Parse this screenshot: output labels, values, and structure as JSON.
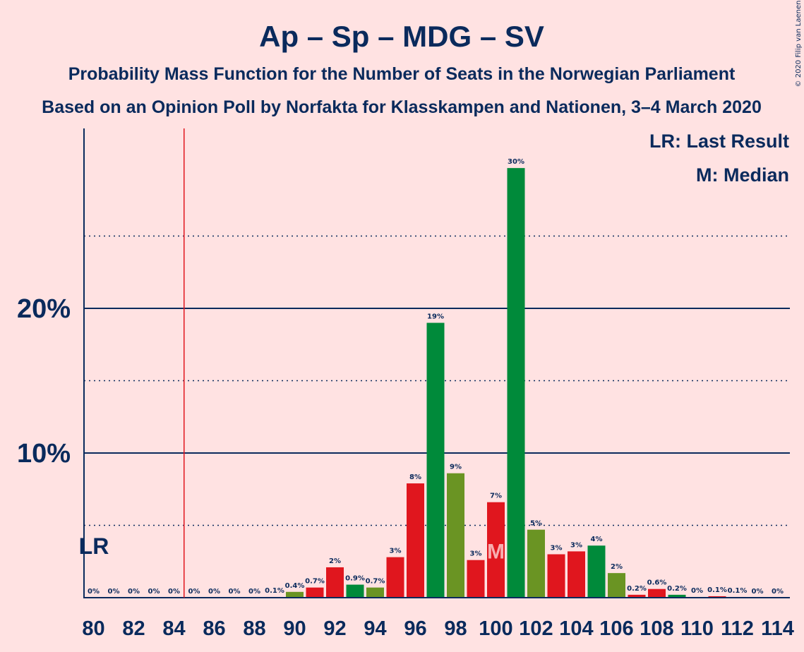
{
  "title": "Ap – Sp – MDG – SV",
  "subtitle1": "Probability Mass Function for the Number of Seats in the Norwegian Parliament",
  "subtitle2": "Based on an Opinion Poll by Norfakta for Klasskampen and Nationen, 3–4 March 2020",
  "copyright": "© 2020 Filip van Laenen",
  "legend": {
    "lr": "LR: Last Result",
    "m": "M: Median"
  },
  "markers": {
    "lr_label": "LR",
    "median_label": "M"
  },
  "colors": {
    "background": "#FFE2E2",
    "text": "#0A2A5C",
    "red": "#E0161E",
    "green": "#008A3A",
    "olive": "#6A9423",
    "lr_line": "#E0161E"
  },
  "chart_data": {
    "type": "bar",
    "x": [
      80,
      81,
      82,
      83,
      84,
      85,
      86,
      87,
      88,
      89,
      90,
      91,
      92,
      93,
      94,
      95,
      96,
      97,
      98,
      99,
      100,
      101,
      102,
      103,
      104,
      105,
      106,
      107,
      108,
      109,
      110,
      111,
      112,
      113,
      114
    ],
    "values": [
      0,
      0,
      0,
      0,
      0,
      0,
      0,
      0,
      0,
      0.05,
      0.4,
      0.7,
      2.1,
      0.9,
      0.7,
      2.8,
      7.9,
      19.0,
      8.6,
      2.6,
      6.6,
      29.7,
      4.7,
      3.0,
      3.2,
      3.6,
      1.7,
      0.2,
      0.6,
      0.2,
      0.05,
      0.1,
      0.05,
      0,
      0
    ],
    "labels": [
      "0%",
      "0%",
      "0%",
      "0%",
      "0%",
      "0%",
      "0%",
      "0%",
      "0%",
      "0.1%",
      "0.4%",
      "0.7%",
      "2%",
      "0.9%",
      "0.7%",
      "3%",
      "8%",
      "19%",
      "9%",
      "3%",
      "7%",
      "30%",
      "5%",
      "3%",
      "3%",
      "4%",
      "2%",
      "0.2%",
      "0.6%",
      "0.2%",
      "0%",
      "0.1%",
      "0.1%",
      "0%",
      "0%"
    ],
    "bar_colors": [
      "red",
      "red",
      "red",
      "red",
      "red",
      "red",
      "red",
      "red",
      "red",
      "red",
      "olive",
      "red",
      "red",
      "green",
      "olive",
      "red",
      "red",
      "green",
      "olive",
      "red",
      "red",
      "green",
      "olive",
      "red",
      "red",
      "green",
      "olive",
      "red",
      "red",
      "green",
      "olive",
      "red",
      "red",
      "green",
      "olive"
    ],
    "x_tick_labels": [
      "80",
      "82",
      "84",
      "86",
      "88",
      "90",
      "92",
      "94",
      "96",
      "98",
      "100",
      "102",
      "104",
      "106",
      "108",
      "110",
      "112",
      "114"
    ],
    "x_tick_values": [
      80,
      82,
      84,
      86,
      88,
      90,
      92,
      94,
      96,
      98,
      100,
      102,
      104,
      106,
      108,
      110,
      112,
      114
    ],
    "y_tick_labels": [
      "10%",
      "20%"
    ],
    "y_tick_values": [
      10,
      20
    ],
    "y_minor_values": [
      5,
      15,
      25
    ],
    "ylim": [
      0,
      32.5
    ],
    "last_result_seat": 84.5,
    "median_seat": 100,
    "grid": true,
    "legend_placement": "top-right"
  }
}
